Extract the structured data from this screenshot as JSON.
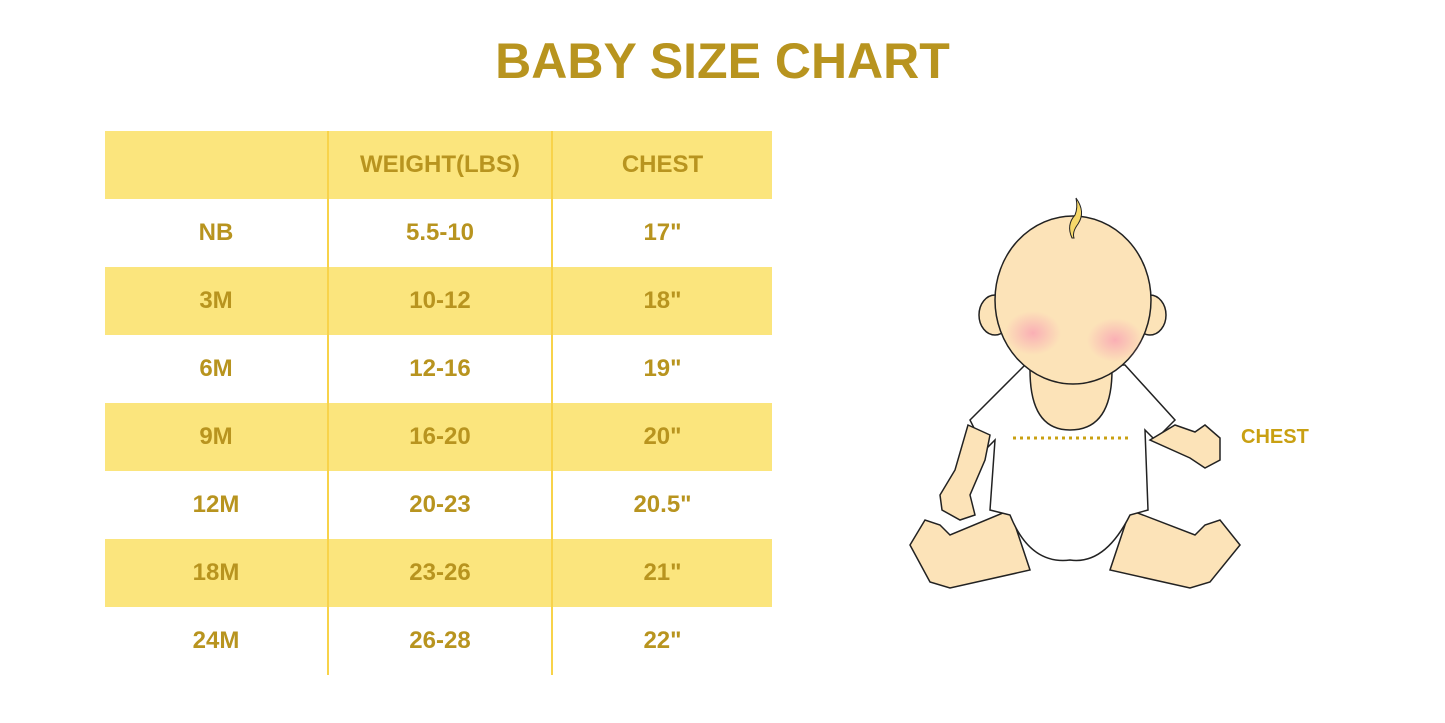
{
  "title": "BABY SIZE CHART",
  "table": {
    "headers": [
      "",
      "WEIGHT(LBS)",
      "CHEST"
    ],
    "rows": [
      [
        "NB",
        "5.5-10",
        "17\""
      ],
      [
        "3M",
        "10-12",
        "18\""
      ],
      [
        "6M",
        "12-16",
        "19\""
      ],
      [
        "9M",
        "16-20",
        "20\""
      ],
      [
        "12M",
        "20-23",
        "20.5\""
      ],
      [
        "18M",
        "23-26",
        "21\""
      ],
      [
        "24M",
        "26-28",
        "22\""
      ]
    ]
  },
  "illustration": {
    "label": "CHEST",
    "icon": "baby-illustration"
  },
  "colors": {
    "text": "#B8941F",
    "band": "#FBE57D",
    "divider": "#F8D34A",
    "skin": "#FCE3B8"
  }
}
